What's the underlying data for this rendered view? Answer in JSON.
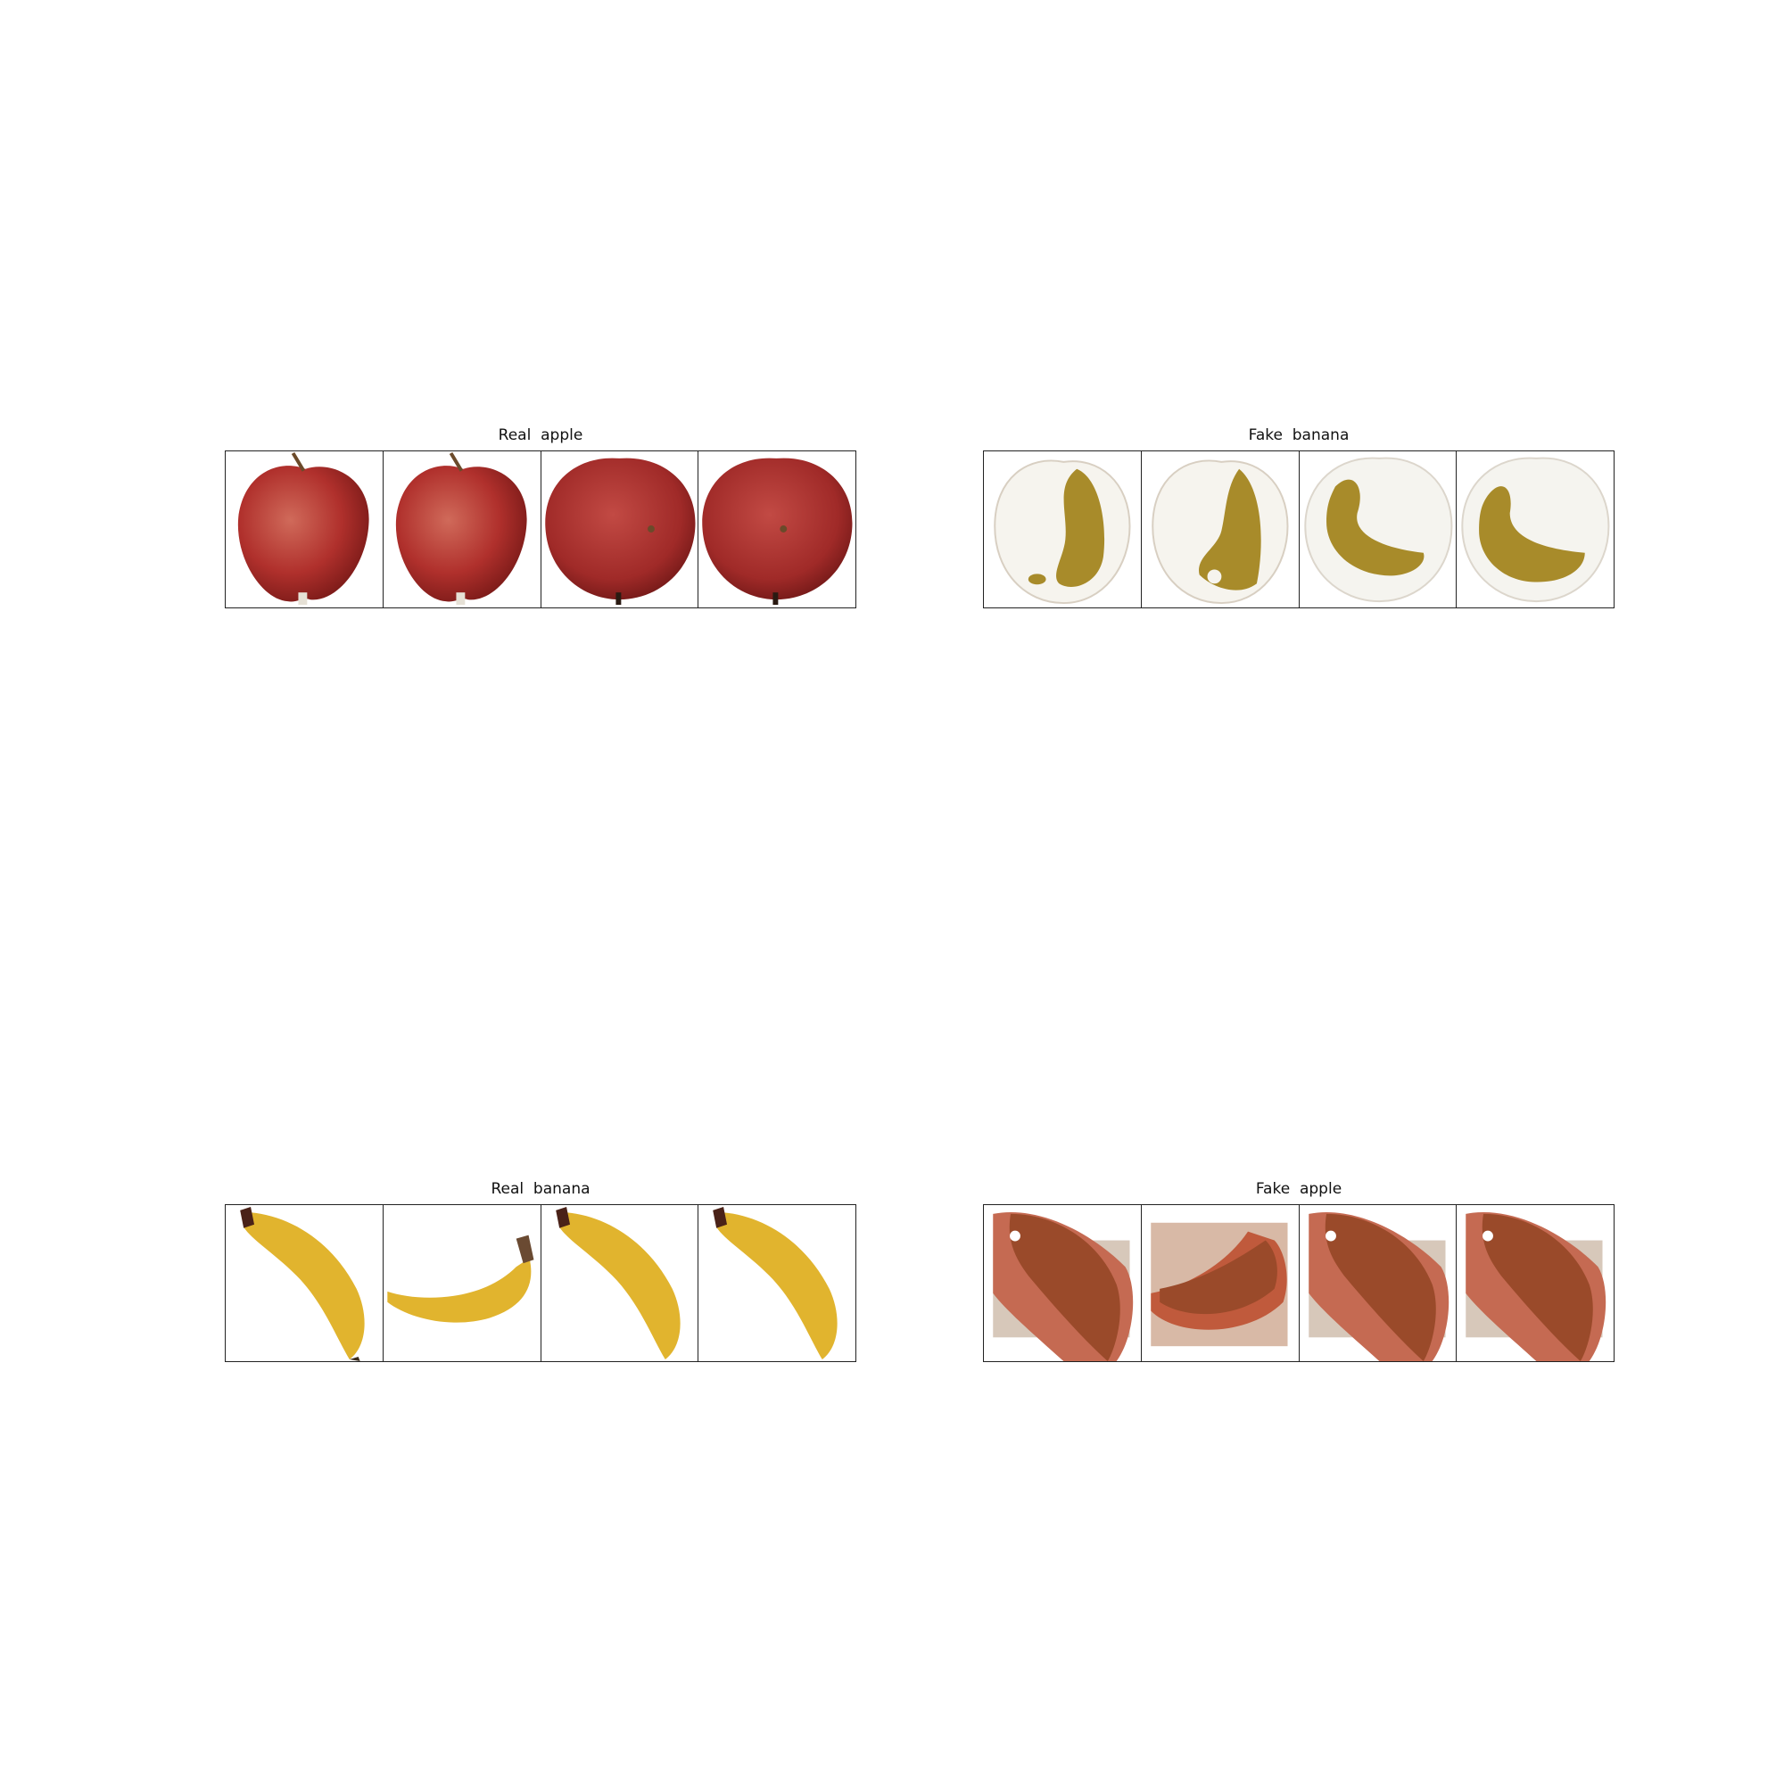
{
  "panels": [
    {
      "title": "Real  apple"
    },
    {
      "title": "Fake  banana"
    },
    {
      "title": "Real  banana"
    },
    {
      "title": "Fake  apple"
    }
  ]
}
